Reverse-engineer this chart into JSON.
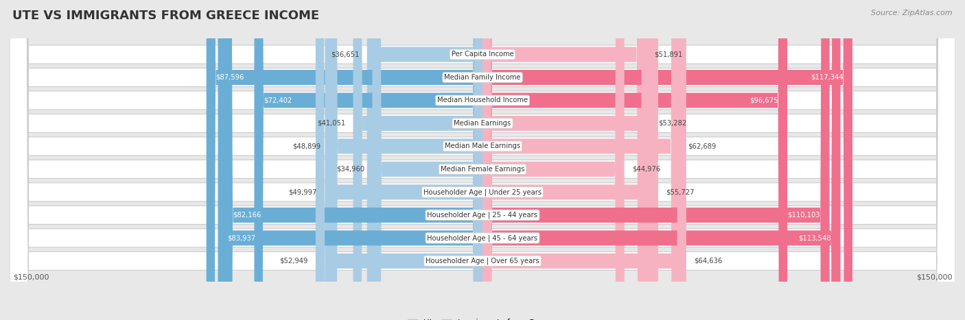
{
  "title": "UTE VS IMMIGRANTS FROM GREECE INCOME",
  "source": "Source: ZipAtlas.com",
  "categories": [
    "Per Capita Income",
    "Median Family Income",
    "Median Household Income",
    "Median Earnings",
    "Median Male Earnings",
    "Median Female Earnings",
    "Householder Age | Under 25 years",
    "Householder Age | 25 - 44 years",
    "Householder Age | 45 - 64 years",
    "Householder Age | Over 65 years"
  ],
  "ute_values": [
    36651,
    87596,
    72402,
    41051,
    48899,
    34960,
    49997,
    82166,
    83937,
    52949
  ],
  "greece_values": [
    51891,
    117344,
    96675,
    53282,
    62689,
    44976,
    55727,
    110103,
    113548,
    64636
  ],
  "ute_color_light": "#a8cce4",
  "ute_color_dark": "#6aaed6",
  "greece_color_light": "#f7b2c1",
  "greece_color_dark": "#f06f8d",
  "ute_label": "Ute",
  "greece_label": "Immigrants from Greece",
  "max_value": 150000,
  "bg_color": "#e8e8e8",
  "row_bg_color": "#ffffff",
  "row_border_color": "#cccccc",
  "title_fontsize": 13,
  "axis_label": "$150,000",
  "dark_text_threshold_ute": 55000,
  "dark_text_threshold_greece": 80000,
  "white_label_color": "#ffffff",
  "dark_label_color": "#444444"
}
